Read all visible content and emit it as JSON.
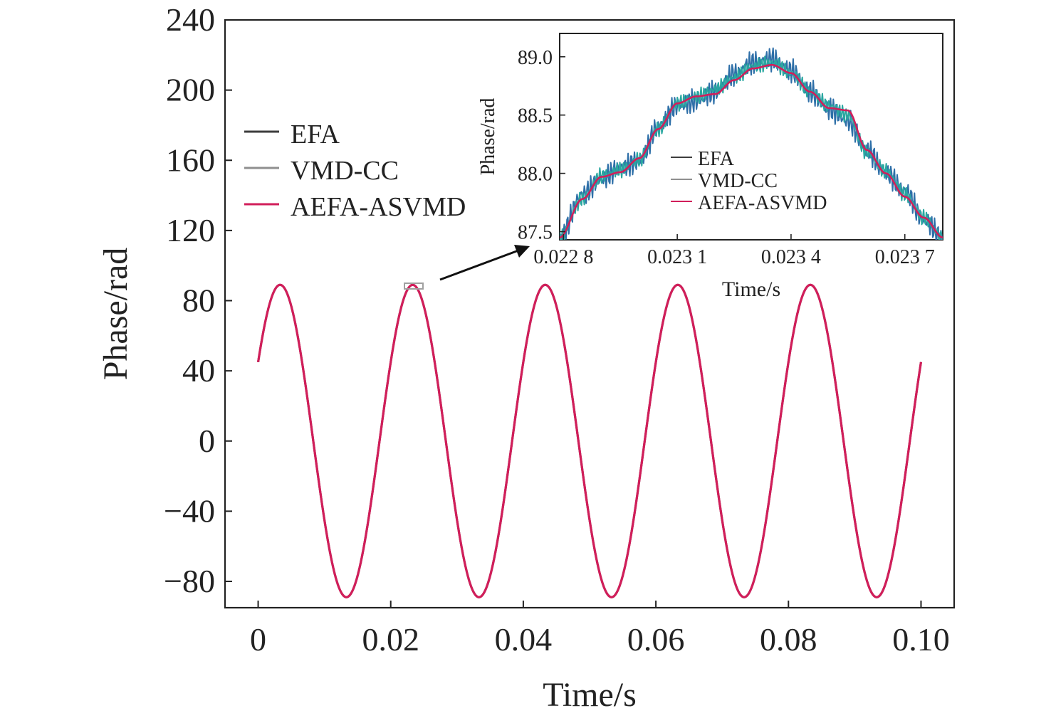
{
  "chart_data": [
    {
      "type": "line",
      "role": "main",
      "xlabel": "Time/s",
      "ylabel": "Phase/rad",
      "xlim": [
        -0.005,
        0.105
      ],
      "ylim": [
        -95,
        240
      ],
      "xticks": [
        0,
        0.02,
        0.04,
        0.06,
        0.08,
        0.1
      ],
      "xtick_labels": [
        "0",
        "0.02",
        "0.04",
        "0.06",
        "0.08",
        "0.10"
      ],
      "yticks": [
        -80,
        -40,
        0,
        40,
        80,
        120,
        160,
        200,
        240
      ],
      "ytick_labels": [
        "−80",
        "−40",
        "0",
        "40",
        "80",
        "120",
        "160",
        "200",
        "240"
      ],
      "grid": false,
      "legend": "upper-left",
      "signal": {
        "x_range": [
          0,
          0.1
        ],
        "offset": 0,
        "amplitude": 89,
        "frequency_hz": 50,
        "phase_start_value": 45
      },
      "series": [
        {
          "name": "EFA",
          "color": "#3d3d3d"
        },
        {
          "name": "VMD-CC",
          "color": "#8f8f8f"
        },
        {
          "name": "AEFA-ASVMD",
          "color": "#d11e5a"
        }
      ],
      "annotation": "zoom-box"
    },
    {
      "type": "line",
      "role": "inset",
      "xlabel": "Time/s",
      "ylabel": "Phase/rad",
      "xlim": [
        0.02279,
        0.0238
      ],
      "ylim": [
        87.43,
        89.2
      ],
      "xticks": [
        0.0228,
        0.0231,
        0.0234,
        0.0237
      ],
      "xtick_labels": [
        "0.022 8",
        "0.023 1",
        "0.023 4",
        "0.023 7"
      ],
      "yticks": [
        87.5,
        88.0,
        88.5,
        89.0
      ],
      "ytick_labels": [
        "87.5",
        "88.0",
        "88.5",
        "89.0"
      ],
      "legend": "center",
      "series": [
        {
          "name": "EFA",
          "color": "#2e6fa8",
          "x": [
            0.02279,
            0.02285,
            0.0229,
            0.02295,
            0.023,
            0.02305,
            0.0231,
            0.02315,
            0.0232,
            0.02325,
            0.0233,
            0.02335,
            0.0234,
            0.02345,
            0.0235,
            0.02355,
            0.0236,
            0.02365,
            0.0237,
            0.02375,
            0.0238
          ],
          "values": [
            87.45,
            87.82,
            87.95,
            88.05,
            88.1,
            88.4,
            88.58,
            88.62,
            88.7,
            88.85,
            88.95,
            88.98,
            88.88,
            88.7,
            88.55,
            88.45,
            88.2,
            88.0,
            87.85,
            87.6,
            87.45
          ]
        },
        {
          "name": "VMD-CC",
          "color": "#2aa7a0",
          "x": [
            0.02279,
            0.02285,
            0.0229,
            0.02295,
            0.023,
            0.02305,
            0.0231,
            0.02315,
            0.0232,
            0.02325,
            0.0233,
            0.02335,
            0.0234,
            0.02345,
            0.0235,
            0.02355,
            0.0236,
            0.02365,
            0.0237,
            0.02375,
            0.0238
          ],
          "values": [
            87.45,
            87.78,
            87.98,
            88.03,
            88.12,
            88.38,
            88.6,
            88.66,
            88.72,
            88.82,
            88.92,
            88.95,
            88.86,
            88.7,
            88.58,
            88.5,
            88.18,
            88.02,
            87.82,
            87.62,
            87.45
          ]
        },
        {
          "name": "AEFA-ASVMD",
          "color": "#d11e5a",
          "x": [
            0.02279,
            0.02285,
            0.0229,
            0.02295,
            0.023,
            0.02305,
            0.0231,
            0.02315,
            0.0232,
            0.02325,
            0.0233,
            0.02335,
            0.0234,
            0.02345,
            0.0235,
            0.02355,
            0.0236,
            0.02365,
            0.0237,
            0.02375,
            0.0238
          ],
          "values": [
            87.45,
            87.78,
            87.97,
            88.01,
            88.13,
            88.38,
            88.6,
            88.66,
            88.68,
            88.8,
            88.9,
            88.93,
            88.86,
            88.7,
            88.56,
            88.54,
            88.2,
            88.0,
            87.8,
            87.62,
            87.45
          ]
        }
      ]
    }
  ]
}
